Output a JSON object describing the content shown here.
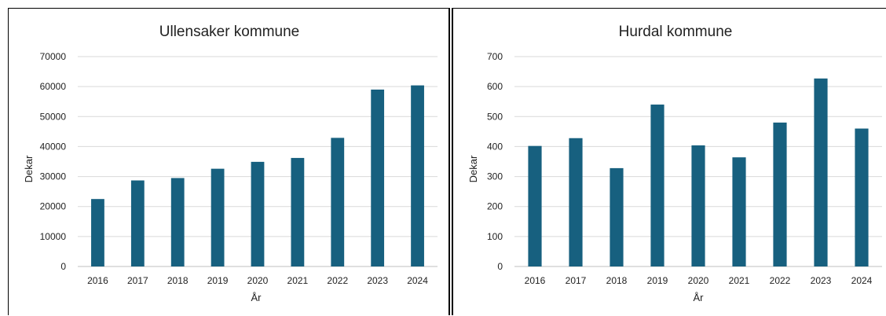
{
  "chart_data": [
    {
      "type": "bar",
      "title": "Ullensaker kommune",
      "xlabel": "År",
      "ylabel": "Dekar",
      "categories": [
        "2016",
        "2017",
        "2018",
        "2019",
        "2020",
        "2021",
        "2022",
        "2023",
        "2024"
      ],
      "values": [
        22500,
        28700,
        29500,
        32600,
        34900,
        36200,
        42900,
        59000,
        60400
      ],
      "ylim": [
        0,
        70000
      ],
      "yticks": [
        "0",
        "10000",
        "20000",
        "30000",
        "40000",
        "50000",
        "60000",
        "70000"
      ],
      "grid": true,
      "legend": "none",
      "bar_color": "#17607f"
    },
    {
      "type": "bar",
      "title": "Hurdal kommune",
      "xlabel": "År",
      "ylabel": "Dekar",
      "categories": [
        "2016",
        "2017",
        "2018",
        "2019",
        "2020",
        "2021",
        "2022",
        "2023",
        "2024"
      ],
      "values": [
        402,
        428,
        328,
        540,
        404,
        364,
        480,
        627,
        460
      ],
      "ylim": [
        0,
        700
      ],
      "yticks": [
        "0",
        "100",
        "200",
        "300",
        "400",
        "500",
        "600",
        "700"
      ],
      "grid": true,
      "legend": "none",
      "bar_color": "#17607f"
    }
  ]
}
